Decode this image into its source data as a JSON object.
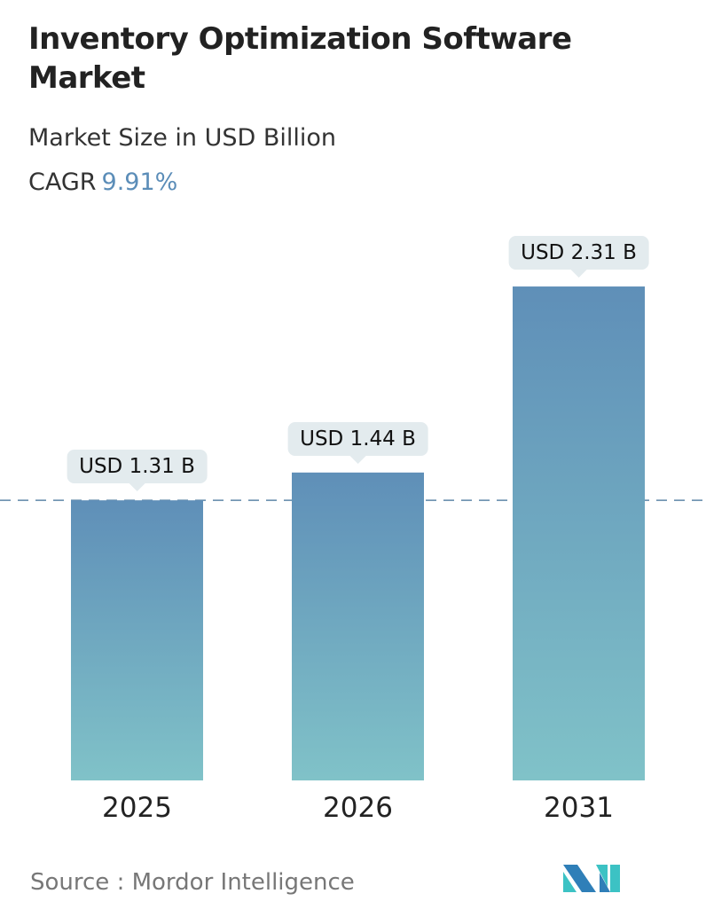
{
  "title": "Inventory Optimization Software Market",
  "subtitle": "Market Size in USD Billion",
  "cagr_label": "CAGR",
  "cagr_value": "9.91%",
  "source": "Source :  Mordor Intelligence",
  "logo_text": "MI",
  "colors": {
    "bar_top": "#5f8fb8",
    "bar_bottom": "#80c2c8",
    "accent": "#5b8db8"
  },
  "chart_data": {
    "type": "bar",
    "categories": [
      "2025",
      "2026",
      "2031"
    ],
    "values": [
      1.31,
      1.44,
      2.31
    ],
    "data_labels": [
      "USD 1.31 B",
      "USD 1.44 B",
      "USD 2.31 B"
    ],
    "reference_line": 1.31,
    "ylim": [
      0,
      2.31
    ],
    "grid": false
  }
}
